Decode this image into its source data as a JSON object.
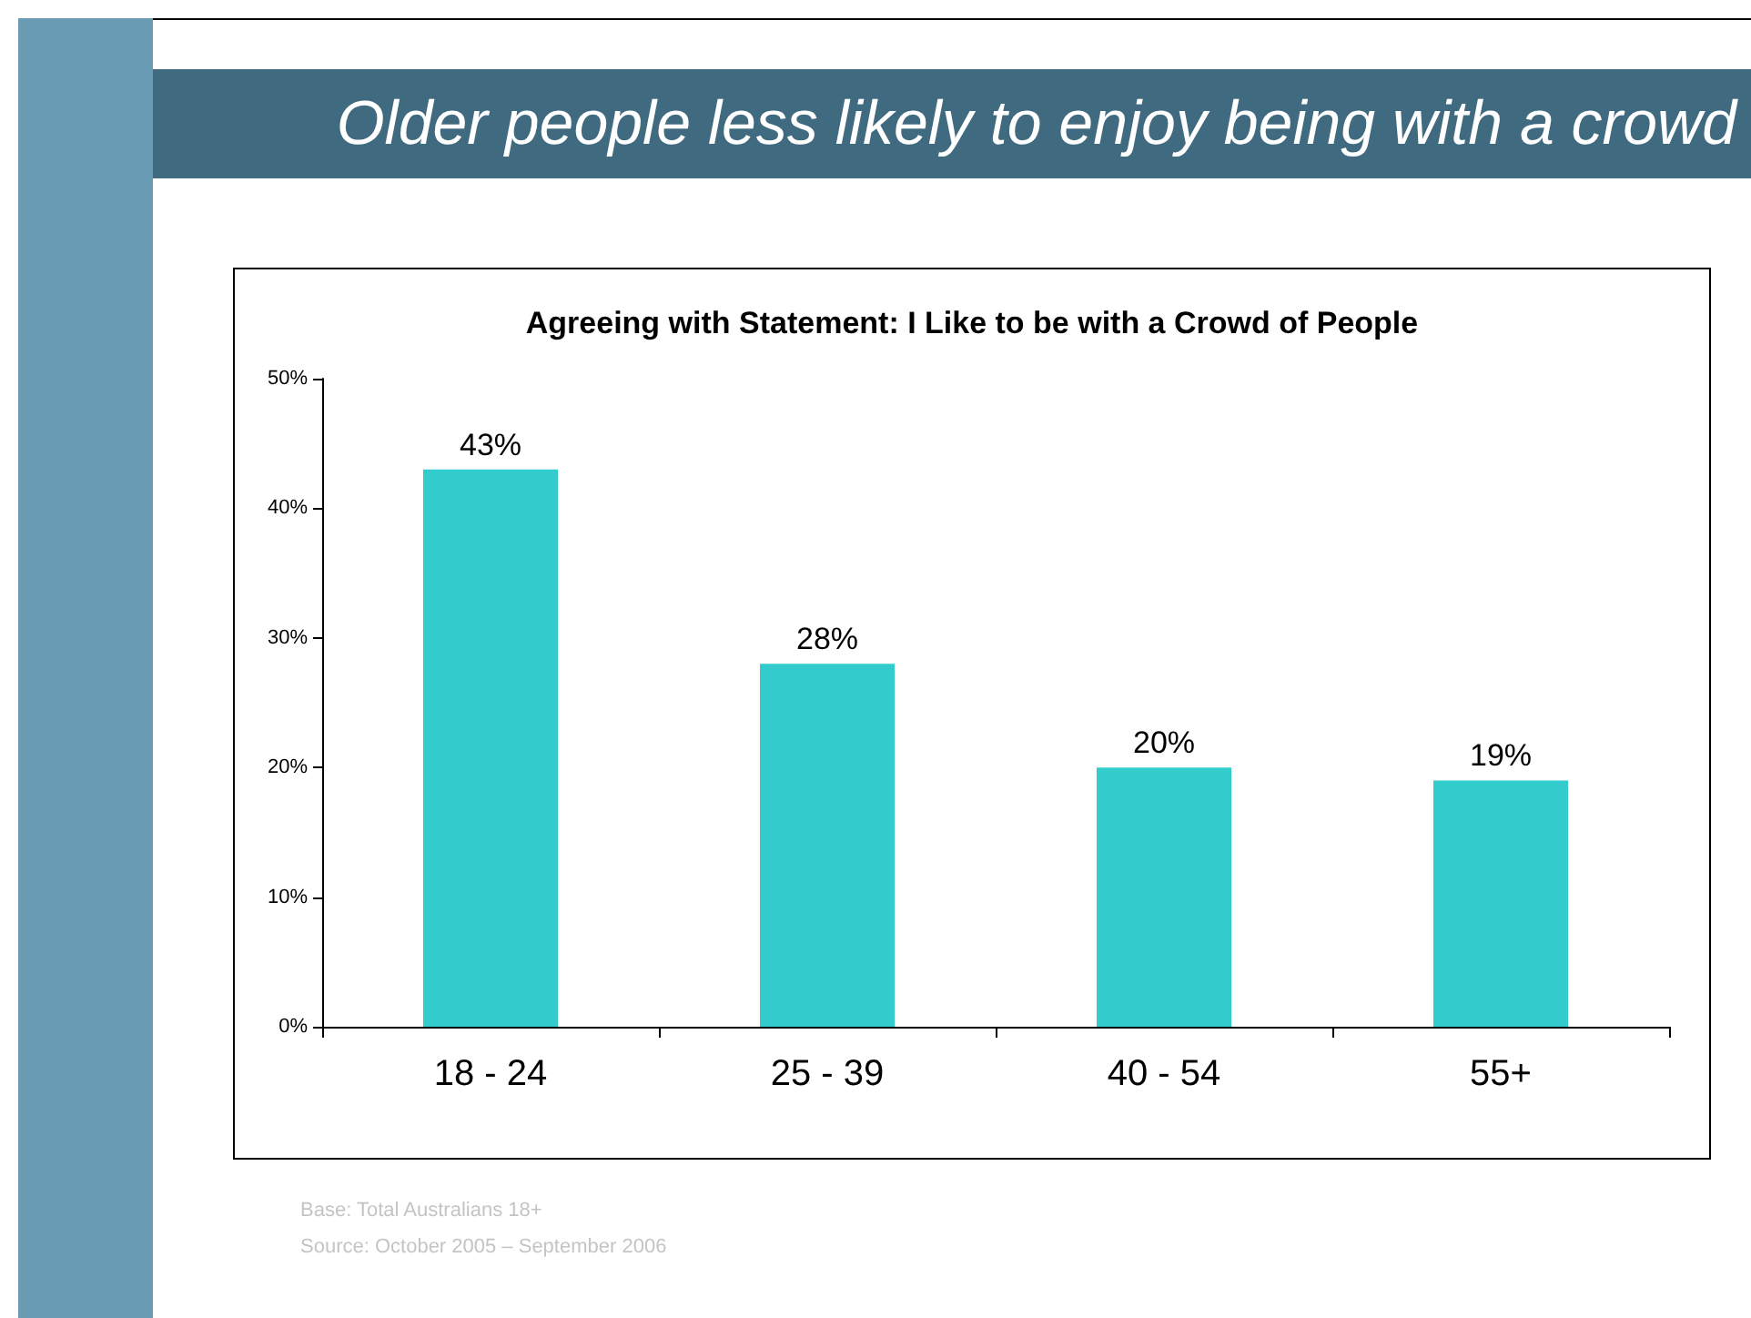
{
  "chart_data": {
    "type": "bar",
    "title": "Agreeing with Statement: I Like to be with a Crowd of People",
    "subtitle": "Older people less likely to enjoy being with a crowd",
    "categories": [
      "18 - 24",
      "25 - 39",
      "40 - 54",
      "55+"
    ],
    "values": [
      43,
      28,
      20,
      19
    ],
    "value_labels": [
      "43%",
      "28%",
      "20%",
      "19%"
    ],
    "color": "#33cccc",
    "ylim": [
      0,
      50
    ],
    "yticks": [
      {
        "value": 0,
        "label": "0%"
      },
      {
        "value": 10,
        "label": "10%"
      },
      {
        "value": 20,
        "label": "20%"
      },
      {
        "value": 30,
        "label": "30%"
      },
      {
        "value": 40,
        "label": "40%"
      },
      {
        "value": 50,
        "label": "50%"
      }
    ],
    "annotations": [
      "Base: Total Australians 18+",
      "Source: October 2005 – September 2006"
    ]
  }
}
